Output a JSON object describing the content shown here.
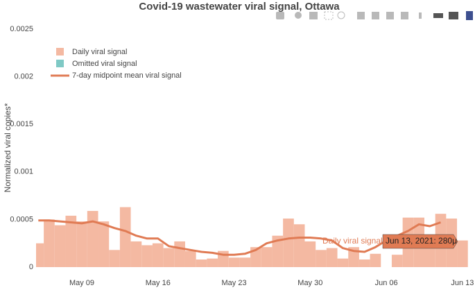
{
  "chart_data": {
    "type": "bar",
    "title": "Covid-19 wastewater viral signal, Ottawa",
    "y_label": "Normalized viral copies*",
    "x": [
      "2021-05-05",
      "2021-05-06",
      "2021-05-07",
      "2021-05-08",
      "2021-05-09",
      "2021-05-10",
      "2021-05-11",
      "2021-05-12",
      "2021-05-13",
      "2021-05-14",
      "2021-05-15",
      "2021-05-16",
      "2021-05-17",
      "2021-05-18",
      "2021-05-19",
      "2021-05-20",
      "2021-05-21",
      "2021-05-22",
      "2021-05-23",
      "2021-05-24",
      "2021-05-25",
      "2021-05-26",
      "2021-05-27",
      "2021-05-28",
      "2021-05-29",
      "2021-05-30",
      "2021-05-31",
      "2021-06-01",
      "2021-06-02",
      "2021-06-03",
      "2021-06-04",
      "2021-06-05",
      "2021-06-06",
      "2021-06-07",
      "2021-06-08",
      "2021-06-09",
      "2021-06-10",
      "2021-06-11",
      "2021-06-12",
      "2021-06-13"
    ],
    "series": [
      {
        "name": "Daily viral signal",
        "type": "bar",
        "color": "#f4b9a2",
        "values": [
          0.00025,
          0.0005,
          0.00044,
          0.00054,
          0.00048,
          0.00059,
          0.00048,
          0.00018,
          0.00063,
          0.00027,
          0.00023,
          0.00025,
          0.0002,
          0.00027,
          0.00017,
          8e-05,
          9e-05,
          0.00017,
          0.0001,
          0.0001,
          0.00021,
          0.00021,
          0.00033,
          0.00051,
          0.00045,
          0.00027,
          0.00018,
          0.0002,
          9e-05,
          0.00021,
          8e-05,
          0.00014,
          null,
          0.00013,
          0.00052,
          0.00052,
          0.00033,
          0.00056,
          0.00051,
          0.00028
        ]
      },
      {
        "name": "Omitted viral signal",
        "type": "bar",
        "color": "#7fc9c5",
        "values": [
          null,
          null,
          null,
          null,
          null,
          null,
          null,
          null,
          null,
          null,
          null,
          null,
          null,
          null,
          null,
          null,
          null,
          null,
          null,
          null,
          null,
          null,
          null,
          null,
          null,
          null,
          null,
          null,
          null,
          null,
          null,
          null,
          null,
          null,
          null,
          null,
          null,
          null,
          null,
          null
        ]
      },
      {
        "name": "7-day midpoint mean viral signal",
        "type": "line",
        "color": "#e07b54",
        "values": [
          0.00049,
          0.00049,
          0.00048,
          0.00047,
          0.00046,
          0.00048,
          0.00045,
          0.00041,
          0.00038,
          0.00033,
          0.0003,
          0.0003,
          0.00022,
          0.0002,
          0.00018,
          0.00016,
          0.00015,
          0.00013,
          0.00013,
          0.00014,
          0.00018,
          0.00025,
          0.00028,
          0.0003,
          0.00031,
          0.00031,
          0.0003,
          0.00028,
          0.0002,
          0.00017,
          0.00016,
          0.00021,
          0.00028,
          0.00033,
          0.00038,
          0.00045,
          0.00043,
          0.00047,
          null,
          null
        ]
      }
    ],
    "xlim": [
      "2021-05-04T19:00:00Z",
      "2021-06-13T17:00:00Z"
    ],
    "xticks": [
      {
        "value": "2021-05-09",
        "label": "May 09"
      },
      {
        "value": "2021-05-16",
        "label": "May 16"
      },
      {
        "value": "2021-05-23",
        "label": "May 23"
      },
      {
        "value": "2021-05-30",
        "label": "May 30"
      },
      {
        "value": "2021-06-06",
        "label": "Jun 06"
      },
      {
        "value": "2021-06-13",
        "label": "Jun 13"
      }
    ],
    "ylim": [
      0,
      0.0025
    ],
    "yticks": [
      0,
      0.0005,
      0.001,
      0.0015,
      0.002,
      0.0025
    ],
    "grid": false,
    "legend": "top-left",
    "hover_labels": [
      "Daily viral signal",
      "Jun 13, 2021: 280μ"
    ]
  }
}
